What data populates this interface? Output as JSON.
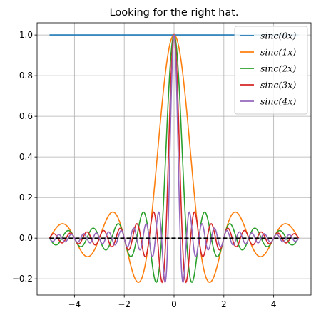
{
  "chart_data": {
    "type": "line",
    "title": "Looking for the right hat.",
    "xlabel": "",
    "ylabel": "",
    "xlim": [
      -5.5,
      5.5
    ],
    "ylim": [
      -0.28,
      1.06
    ],
    "x_ticks": [
      -4,
      -2,
      0,
      2,
      4
    ],
    "x_tick_labels": [
      "−4",
      "−2",
      "0",
      "2",
      "4"
    ],
    "y_ticks": [
      -0.2,
      0.0,
      0.2,
      0.4,
      0.6,
      0.8,
      1.0
    ],
    "y_tick_labels": [
      "−0.2",
      "0.0",
      "0.2",
      "0.4",
      "0.6",
      "0.8",
      "1.0"
    ],
    "grid": true,
    "legend_position": "top-right",
    "x_range": [
      -5,
      5
    ],
    "series": [
      {
        "name": "sinc(0x)",
        "frequency": 0,
        "color": "#1f77b4"
      },
      {
        "name": "sinc(1x)",
        "frequency": 1,
        "color": "#ff7f0e"
      },
      {
        "name": "sinc(2x)",
        "frequency": 2,
        "color": "#2ca02c"
      },
      {
        "name": "sinc(3x)",
        "frequency": 3,
        "color": "#d62728"
      },
      {
        "name": "sinc(4x)",
        "frequency": 4,
        "color": "#9467bd"
      }
    ],
    "reference_line": {
      "y": 0,
      "style": "dashed",
      "color": "#000000"
    }
  }
}
